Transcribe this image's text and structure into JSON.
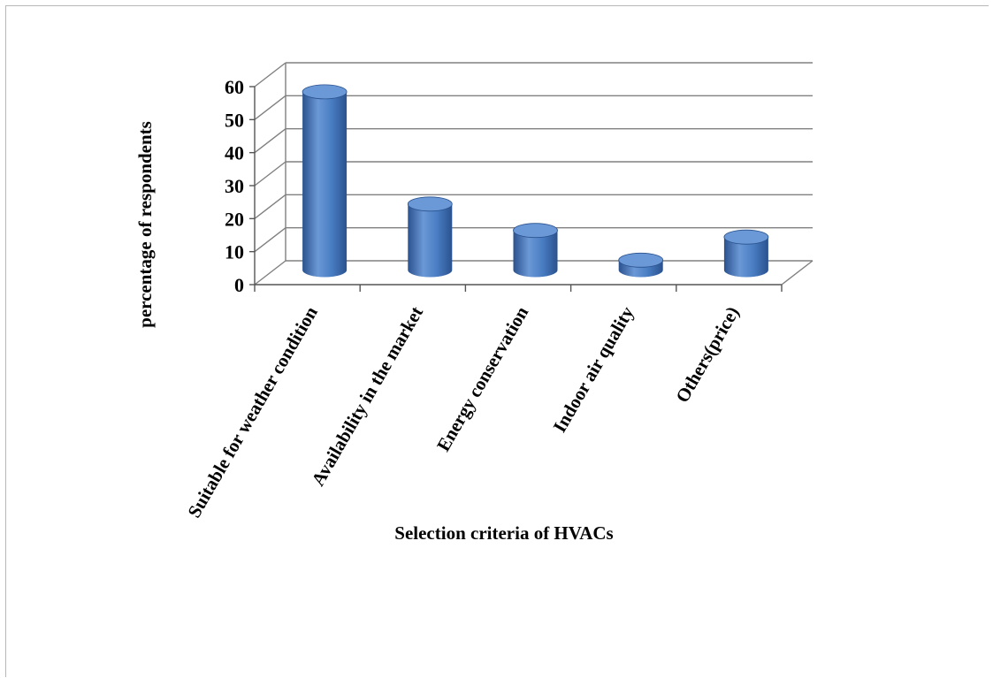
{
  "chart_data": {
    "type": "bar",
    "style": "3d-cylinder",
    "categories": [
      "Suitable for weather condition",
      "Availability in the market",
      "Energy conservation",
      "Indoor air quality",
      "Others(price)"
    ],
    "values": [
      54,
      20,
      12,
      3,
      10
    ],
    "xlabel": "Selection criteria of HVACs",
    "ylabel": "percentage of  respondents",
    "ylim": [
      0,
      60
    ],
    "yticks": [
      0,
      10,
      20,
      30,
      40,
      50,
      60
    ],
    "grid": true,
    "legend": "none",
    "colors": {
      "bar": "#4a7ec4",
      "bar_dark": "#2a528e",
      "bar_top": "#6b98d6",
      "grid": "#808080"
    }
  }
}
